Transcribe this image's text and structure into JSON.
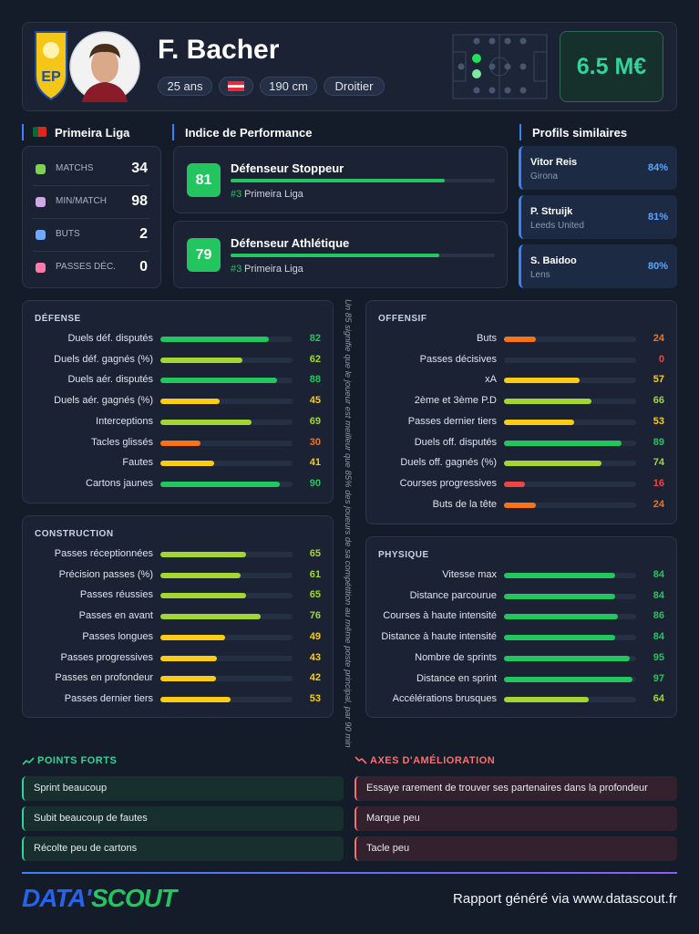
{
  "header": {
    "name": "F. Bacher",
    "tags": [
      "25 ans",
      "190 cm",
      "Droitier"
    ],
    "value": "6.5 M€"
  },
  "xlim": [
    0,
    100
  ],
  "league": {
    "title": "Primeira Liga",
    "stats": [
      {
        "label": "MATCHS",
        "value": 34
      },
      {
        "label": "MIN/MATCH",
        "value": 98
      },
      {
        "label": "BUTS",
        "value": 2
      },
      {
        "label": "PASSES DÉC.",
        "value": 0
      }
    ]
  },
  "performance": {
    "title": "Indice de Performance",
    "items": [
      {
        "score": 81,
        "role": "Défenseur Stoppeur",
        "rank": "#3",
        "league": "Primeira Liga"
      },
      {
        "score": 79,
        "role": "Défenseur Athlétique",
        "rank": "#3",
        "league": "Primeira Liga"
      }
    ]
  },
  "similar": {
    "title": "Profils similaires",
    "items": [
      {
        "name": "Vitor Reis",
        "club": "Girona",
        "match": "84%"
      },
      {
        "name": "P. Struijk",
        "club": "Leeds United",
        "match": "81%"
      },
      {
        "name": "S. Baidoo",
        "club": "Lens",
        "match": "80%"
      }
    ]
  },
  "panels": [
    {
      "title": "DÉFENSE",
      "metrics": [
        {
          "label": "Duels déf. disputés",
          "value": 82
        },
        {
          "label": "Duels déf. gagnés (%)",
          "value": 62
        },
        {
          "label": "Duels aér. disputés",
          "value": 88
        },
        {
          "label": "Duels aér. gagnés (%)",
          "value": 45
        },
        {
          "label": "Interceptions",
          "value": 69
        },
        {
          "label": "Tacles glissés",
          "value": 30
        },
        {
          "label": "Fautes",
          "value": 41
        },
        {
          "label": "Cartons jaunes",
          "value": 90
        }
      ]
    },
    {
      "title": "CONSTRUCTION",
      "metrics": [
        {
          "label": "Passes réceptionnées",
          "value": 65
        },
        {
          "label": "Précision passes (%)",
          "value": 61
        },
        {
          "label": "Passes réussies",
          "value": 65
        },
        {
          "label": "Passes en avant",
          "value": 76
        },
        {
          "label": "Passes longues",
          "value": 49
        },
        {
          "label": "Passes progressives",
          "value": 43
        },
        {
          "label": "Passes en profondeur",
          "value": 42
        },
        {
          "label": "Passes dernier tiers",
          "value": 53
        }
      ]
    },
    {
      "title": "OFFENSIF",
      "metrics": [
        {
          "label": "Buts",
          "value": 24
        },
        {
          "label": "Passes décisives",
          "value": 0
        },
        {
          "label": "xA",
          "value": 57
        },
        {
          "label": "2ème et 3ème P.D",
          "value": 66
        },
        {
          "label": "Passes dernier tiers",
          "value": 53
        },
        {
          "label": "Duels off. disputés",
          "value": 89
        },
        {
          "label": "Duels off. gagnés (%)",
          "value": 74
        },
        {
          "label": "Courses progressives",
          "value": 16
        },
        {
          "label": "Buts de la tête",
          "value": 24
        }
      ]
    },
    {
      "title": "PHYSIQUE",
      "metrics": [
        {
          "label": "Vitesse max",
          "value": 84
        },
        {
          "label": "Distance parcourue",
          "value": 84
        },
        {
          "label": "Courses à haute intensité",
          "value": 86
        },
        {
          "label": "Distance à haute intensité",
          "value": 84
        },
        {
          "label": "Nombre de sprints",
          "value": 95
        },
        {
          "label": "Distance en sprint",
          "value": 97
        },
        {
          "label": "Accélérations brusques",
          "value": 64
        }
      ]
    }
  ],
  "note": "Un 85 signifie que le joueur est meilleur que 85% des joueurs de sa compétition au même poste principal, par 90 min",
  "strengths": {
    "title": "POINTS FORTS",
    "items": [
      "Sprint beaucoup",
      "Subit beaucoup de fautes",
      "Récolte peu de cartons"
    ]
  },
  "improvements": {
    "title": "AXES D'AMÉLIORATION",
    "items": [
      "Essaye rarement de trouver ses partenaires dans la profondeur",
      "Marque peu",
      "Tacle peu"
    ]
  },
  "footer": {
    "logo": [
      "DATA'",
      "SCOUT"
    ],
    "text": "Rapport généré via www.datascout.fr"
  }
}
